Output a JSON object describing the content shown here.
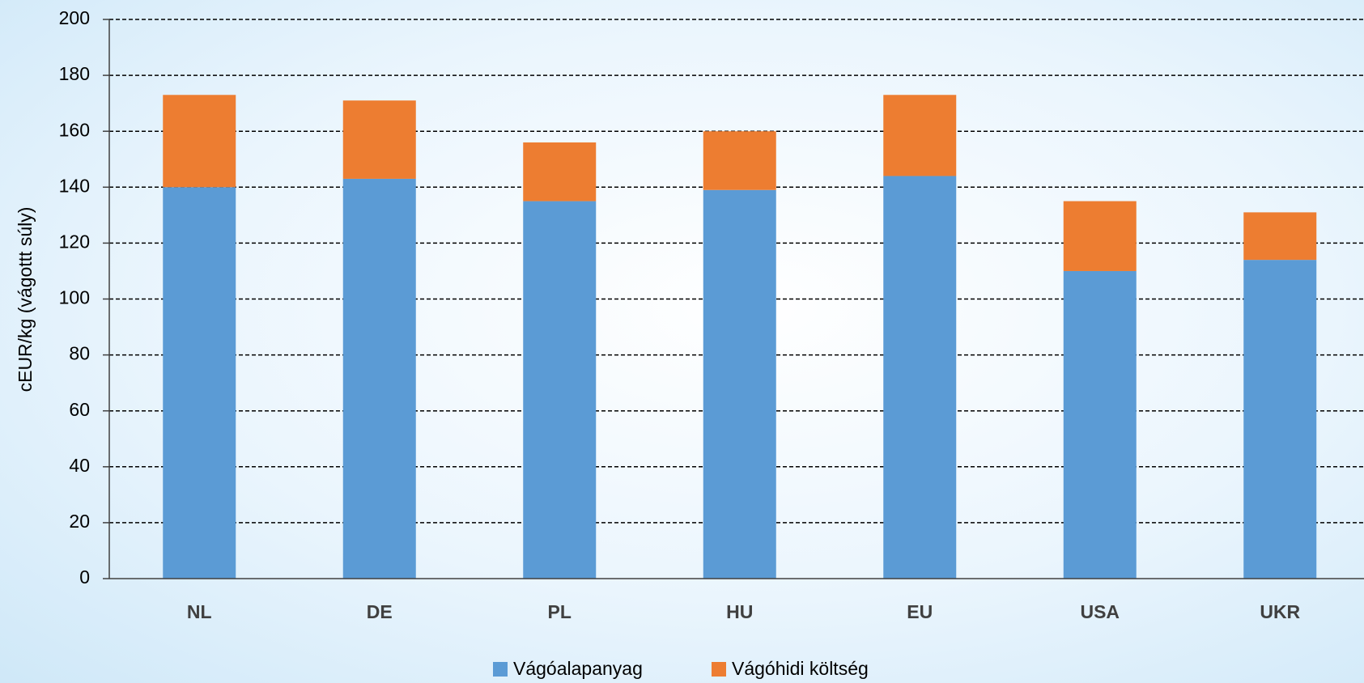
{
  "chart_data": {
    "type": "stacked_bar",
    "y_label": "cEUR/kg (vágottt súly)",
    "categories": [
      "NL",
      "DE",
      "PL",
      "HU",
      "EU",
      "USA",
      "UKR"
    ],
    "series": [
      {
        "name": "Vágóalapanyag",
        "color": "#5b9bd5",
        "values": [
          140,
          143,
          135,
          139,
          144,
          110,
          114
        ]
      },
      {
        "name": "Vágóhidi költség",
        "color": "#ed7d31",
        "values": [
          33,
          28,
          21,
          21,
          29,
          25,
          17
        ]
      }
    ],
    "ylim": [
      0,
      200
    ],
    "yticks": [
      0,
      20,
      40,
      60,
      80,
      100,
      120,
      140,
      160,
      180,
      200
    ],
    "grid": true,
    "legend": "bottom"
  }
}
